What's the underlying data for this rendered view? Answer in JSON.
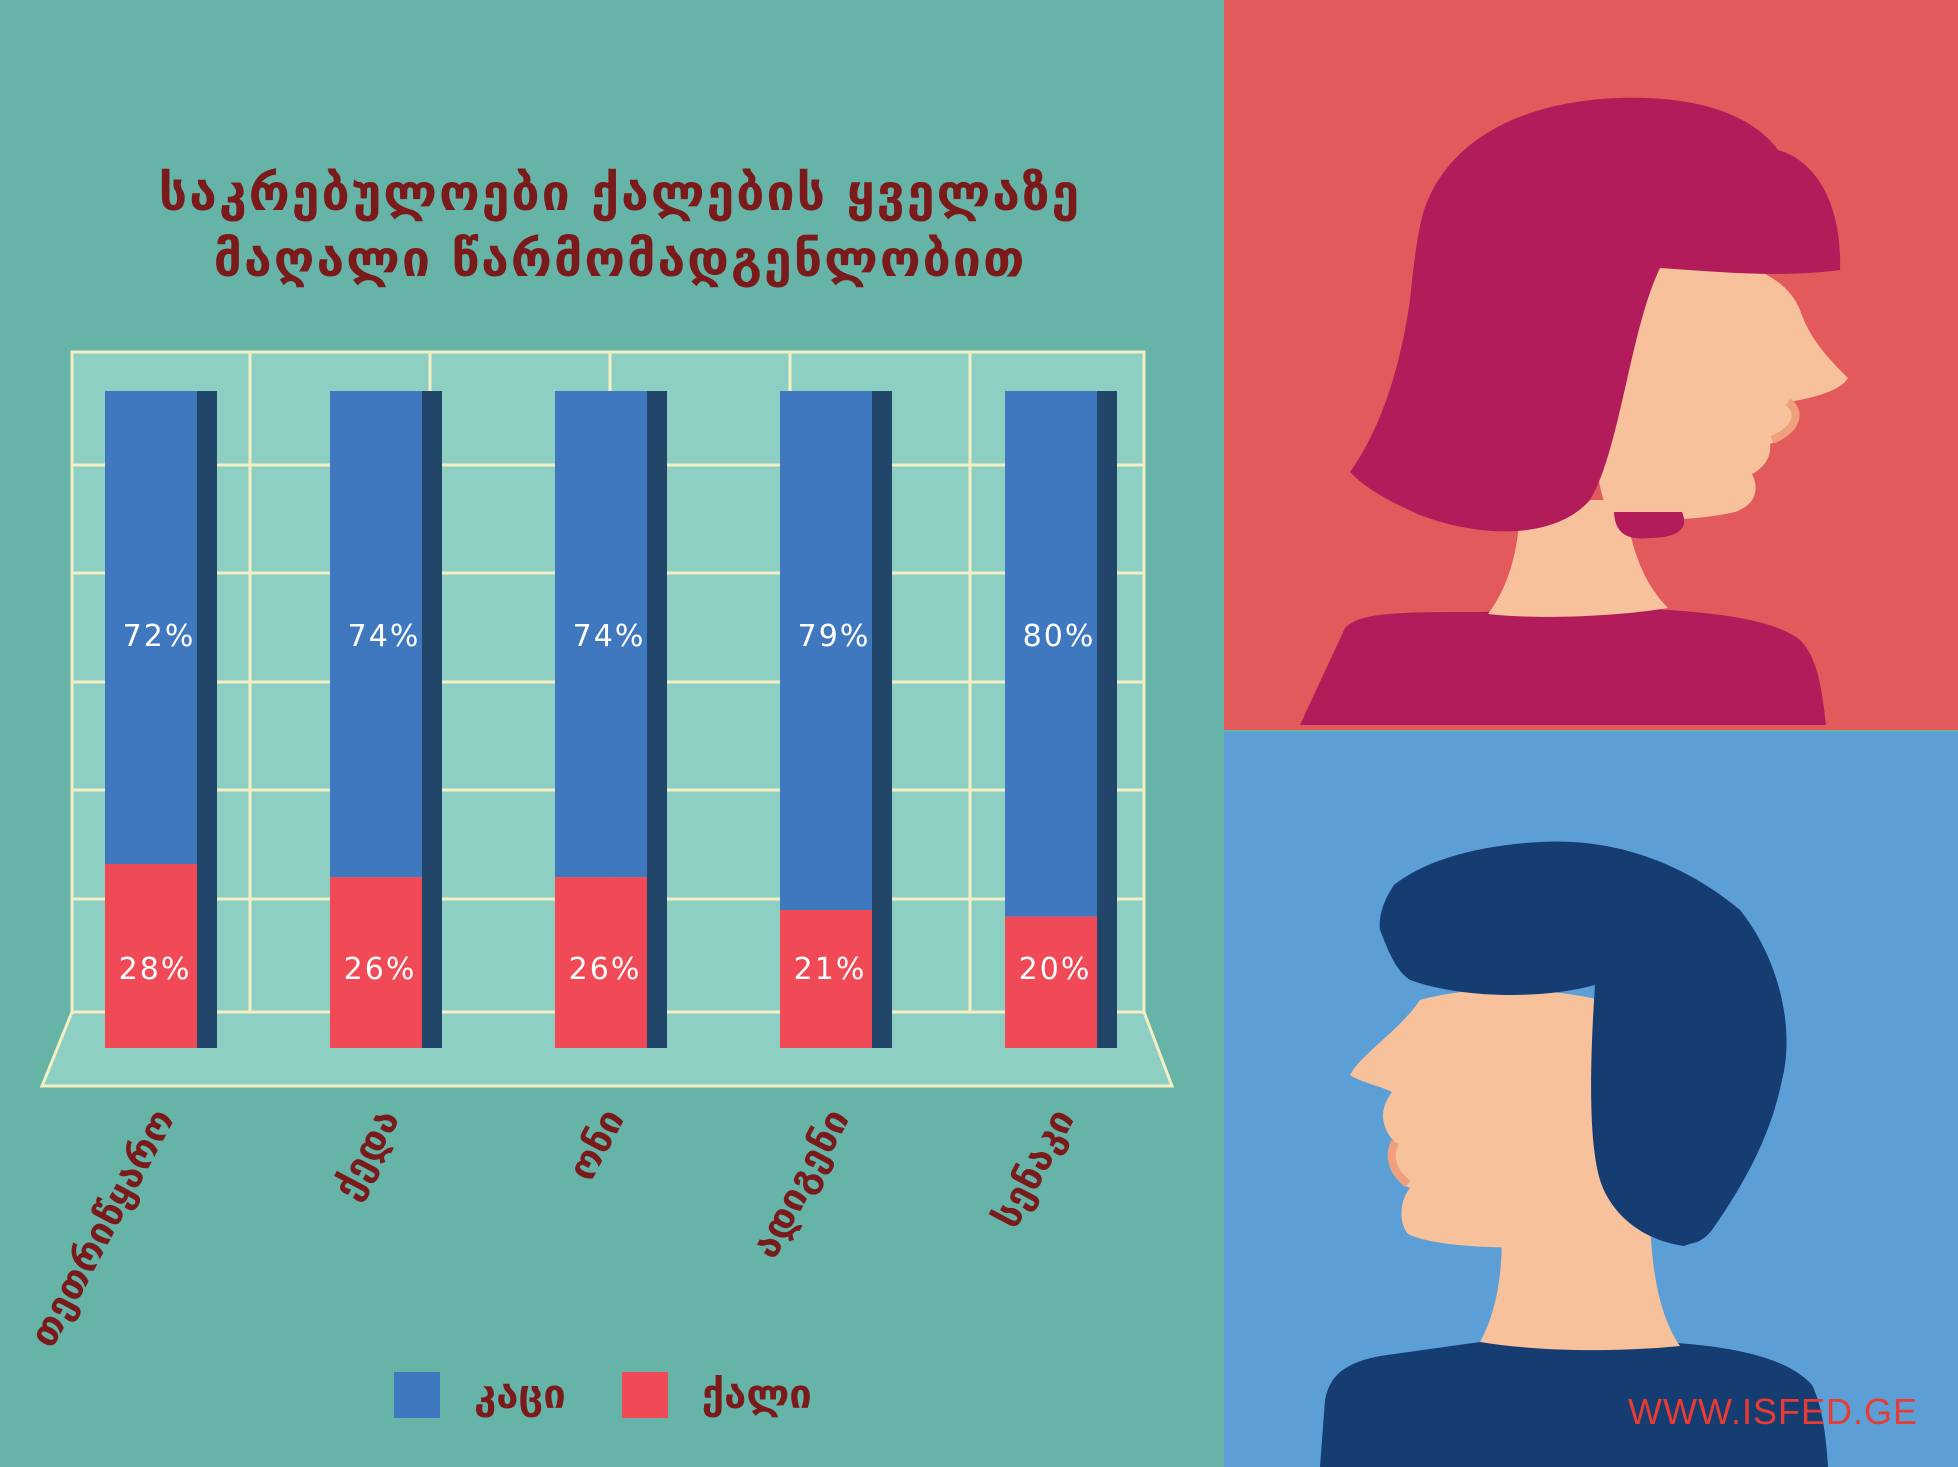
{
  "header": {
    "title_line1": "საკრებულოები ქალების ყველაზე",
    "title_line2": "მაღალი წარმომადგენლობით"
  },
  "legend": [
    {
      "label": "კაცი",
      "color": "#3f78be"
    },
    {
      "label": "ქალი",
      "color": "#ef4a55"
    }
  ],
  "footer": {
    "website": "WWW.ISFED.GE"
  },
  "illustrations": {
    "top": "woman-profile-illustration",
    "bottom": "man-profile-illustration"
  },
  "chart_data": {
    "type": "bar",
    "stacked": true,
    "categories": [
      "თეთრიწყარო",
      "ქედა",
      "ონი",
      "ადიგენი",
      "სენაკი"
    ],
    "series": [
      {
        "name": "ქალი",
        "color": "#ef4a55",
        "values": [
          28,
          26,
          26,
          21,
          20
        ],
        "labels": [
          "28%",
          "26%",
          "26%",
          "21%",
          "20%"
        ]
      },
      {
        "name": "კაცი",
        "color": "#3f78be",
        "values": [
          72,
          74,
          74,
          79,
          80
        ],
        "labels": [
          "72%",
          "74%",
          "74%",
          "79%",
          "80%"
        ]
      }
    ],
    "unit": "%",
    "ylim": [
      0,
      100
    ],
    "grid": true,
    "legend_position": "bottom"
  }
}
